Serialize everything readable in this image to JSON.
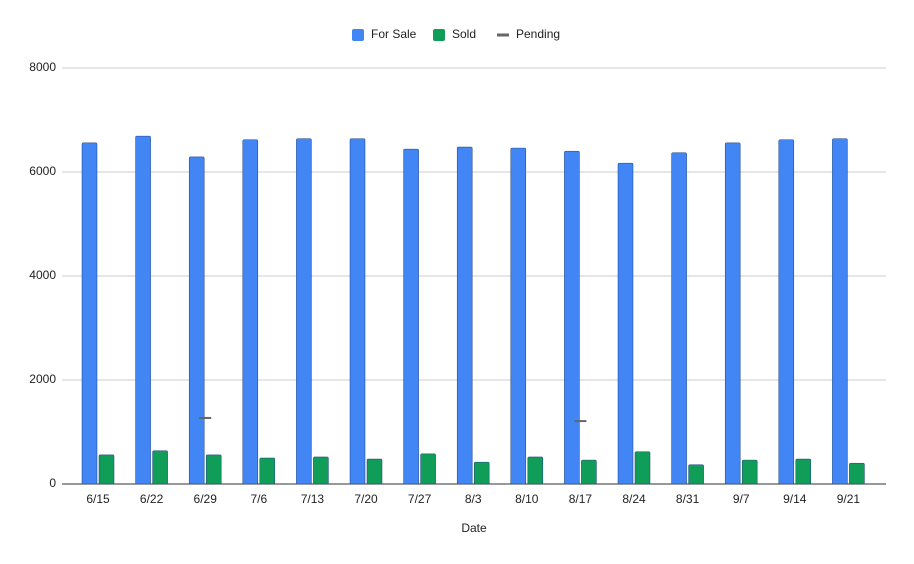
{
  "chart_data": {
    "type": "bar",
    "x_label": "Date",
    "categories": [
      "6/15",
      "6/22",
      "6/29",
      "7/6",
      "7/13",
      "7/20",
      "7/27",
      "8/3",
      "8/10",
      "8/17",
      "8/24",
      "8/31",
      "9/7",
      "9/14",
      "9/21"
    ],
    "series": [
      {
        "name": "For Sale",
        "color": "#4285f4",
        "values": [
          6560,
          6690,
          6290,
          6620,
          6640,
          6640,
          6440,
          6480,
          6460,
          6400,
          6170,
          6370,
          6560,
          6620,
          6640
        ]
      },
      {
        "name": "Sold",
        "color": "#0f9d58",
        "values": [
          560,
          640,
          560,
          500,
          520,
          480,
          580,
          420,
          520,
          460,
          620,
          370,
          460,
          480,
          400
        ]
      },
      {
        "name": "Pending",
        "color": "#666666",
        "type": "line",
        "values": [
          null,
          null,
          1270,
          null,
          null,
          null,
          null,
          null,
          null,
          1210,
          null,
          null,
          null,
          null,
          null
        ]
      }
    ],
    "ylim": [
      0,
      8000
    ],
    "yticks": [
      0,
      2000,
      4000,
      6000,
      8000
    ],
    "grid": true,
    "legend": "top"
  }
}
